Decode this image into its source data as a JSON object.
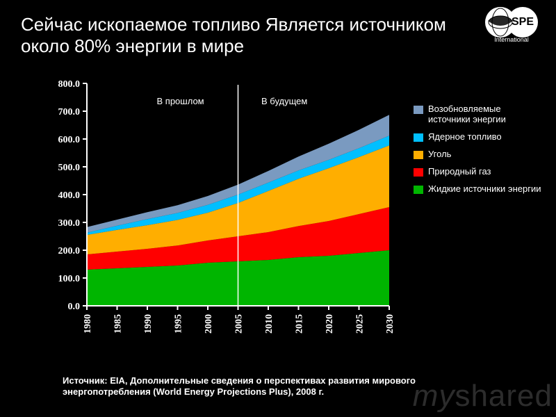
{
  "title": "Сейчас ископаемое топливо Является источником около 80% энергии в мире",
  "logo": {
    "text": "SPE",
    "sub": "International"
  },
  "chart": {
    "type": "area",
    "background_color": "#000000",
    "plot_bg": "#000000",
    "axis_color": "#ffffff",
    "axis_fontsize": 14,
    "title_fontsize": 26,
    "ylim": [
      0,
      800
    ],
    "ytick_step": 100,
    "yticks": [
      "0.0",
      "100.0",
      "200.0",
      "300.0",
      "400.0",
      "500.0",
      "600.0",
      "700.0",
      "800.0"
    ],
    "xlim": [
      1980,
      2030
    ],
    "xtick_step": 5,
    "xticks": [
      "1980",
      "1985",
      "1990",
      "1995",
      "2000",
      "2005",
      "2010",
      "2015",
      "2020",
      "2025",
      "2030"
    ],
    "annotations": {
      "past": "В прошлом",
      "future": "В будущем",
      "divider_year": 2005,
      "divider_color": "#ffffff"
    },
    "series": [
      {
        "key": "liquid",
        "label": "Жидкие источники энергии",
        "color": "#00b500",
        "values": [
          130,
          135,
          140,
          145,
          155,
          160,
          165,
          175,
          180,
          190,
          200
        ]
      },
      {
        "key": "gas",
        "label": "Природный газ",
        "color": "#ff0000",
        "values": [
          55,
          60,
          65,
          72,
          80,
          90,
          100,
          112,
          125,
          140,
          155
        ]
      },
      {
        "key": "coal",
        "label": "Уголь",
        "color": "#ffae00",
        "values": [
          70,
          78,
          85,
          92,
          100,
          120,
          148,
          170,
          190,
          205,
          222
        ]
      },
      {
        "key": "nuclear",
        "label": "Ядерное топливо",
        "color": "#00bfff",
        "values": [
          8,
          15,
          22,
          25,
          28,
          30,
          30,
          30,
          30,
          32,
          35
        ]
      },
      {
        "key": "renewable",
        "label": "Возобновляемые источники энергии",
        "color": "#7a9ac0",
        "values": [
          20,
          22,
          25,
          28,
          32,
          36,
          42,
          50,
          58,
          66,
          75
        ]
      }
    ]
  },
  "legend_order": [
    "renewable",
    "nuclear",
    "coal",
    "gas",
    "liquid"
  ],
  "source": "Источник: EIA, Дополнительные сведения о перспективах развития мирового энергопотребления (World Energy Projections Plus), 2008 г.",
  "watermark": {
    "a": "my",
    "b": "shared"
  }
}
